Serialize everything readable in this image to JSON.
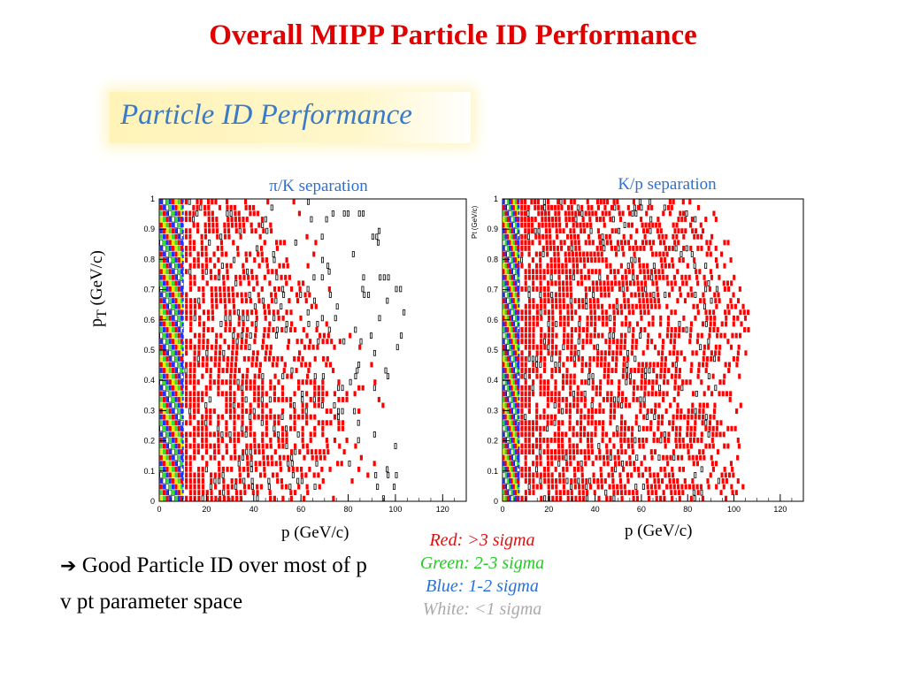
{
  "slide_title": "Overall MIPP Particle ID Performance",
  "banner_text": "Particle ID Performance",
  "bullet": {
    "arrow_icon": "right-arrow-icon",
    "text": "Good Particle ID over most of p v pt parameter space"
  },
  "legend": [
    {
      "label": "Red: >3 sigma",
      "color": "#e01010"
    },
    {
      "label": "Green: 2-3 sigma",
      "color": "#22cc22"
    },
    {
      "label": "Blue: 1-2 sigma",
      "color": "#2a70d8"
    },
    {
      "label": "White: <1 sigma",
      "color": "#aaaaaa"
    }
  ],
  "colors": {
    "red": "#ff0000",
    "green": "#33dd33",
    "blue": "#2233ff",
    "white": "#ffffff",
    "yellow": "#e8e800"
  },
  "chart_data": [
    {
      "type": "heatmap",
      "title": "π/K separation",
      "xlabel": "p (GeV/c)",
      "ylabel_main": "p",
      "ylabel_sub": "T",
      "ylabel_unit": "(GeV/c)",
      "xlim": [
        0,
        130
      ],
      "ylim": [
        0,
        1
      ],
      "xticks": [
        0,
        20,
        40,
        60,
        80,
        100,
        120
      ],
      "yticks": [
        0,
        0.1,
        0.2,
        0.3,
        0.4,
        0.5,
        0.6,
        0.7,
        0.8,
        0.9,
        1
      ],
      "ytick_labels": [
        "0",
        "0.1",
        "0.2",
        "0.3",
        "0.4",
        "0.5",
        "0.6",
        "0.7",
        "0.8",
        "0.9",
        "1"
      ],
      "low_p_band": [
        0,
        10
      ],
      "red_extent_p": [
        [
          0.0,
          60
        ],
        [
          0.1,
          75
        ],
        [
          0.2,
          80
        ],
        [
          0.3,
          80
        ],
        [
          0.4,
          78
        ],
        [
          0.5,
          75
        ],
        [
          0.6,
          70
        ],
        [
          0.7,
          62
        ],
        [
          0.8,
          55
        ],
        [
          0.9,
          48
        ],
        [
          1.0,
          42
        ]
      ],
      "white_extent_p": [
        [
          0.0,
          105
        ],
        [
          0.2,
          100
        ],
        [
          0.4,
          100
        ],
        [
          0.6,
          110
        ],
        [
          0.8,
          100
        ],
        [
          1.0,
          92
        ]
      ]
    },
    {
      "type": "heatmap",
      "title": "K/p separation",
      "xlabel": "p (GeV/c)",
      "ylabel": "Pt (GeV/c)",
      "xlim": [
        0,
        130
      ],
      "ylim": [
        0,
        1
      ],
      "xticks": [
        0,
        20,
        40,
        60,
        80,
        100,
        120
      ],
      "yticks": [
        0,
        0.1,
        0.2,
        0.3,
        0.4,
        0.5,
        0.6,
        0.7,
        0.8,
        0.9,
        1
      ],
      "ytick_labels": [
        "0",
        "0.1",
        "0.2",
        "0.3",
        "0.4",
        "0.5",
        "0.6",
        "0.7",
        "0.8",
        "0.9",
        "1"
      ],
      "low_p_band": [
        0,
        7
      ],
      "red_extent_p": [
        [
          0.0,
          100
        ],
        [
          0.1,
          102
        ],
        [
          0.2,
          100
        ],
        [
          0.3,
          98
        ],
        [
          0.4,
          100
        ],
        [
          0.5,
          102
        ],
        [
          0.6,
          108
        ],
        [
          0.7,
          100
        ],
        [
          0.8,
          95
        ],
        [
          0.9,
          90
        ],
        [
          1.0,
          80
        ]
      ],
      "white_extent_p": [
        [
          0.0,
          95
        ],
        [
          0.2,
          90
        ],
        [
          0.4,
          92
        ],
        [
          0.6,
          95
        ],
        [
          0.8,
          90
        ],
        [
          1.0,
          80
        ]
      ]
    }
  ]
}
